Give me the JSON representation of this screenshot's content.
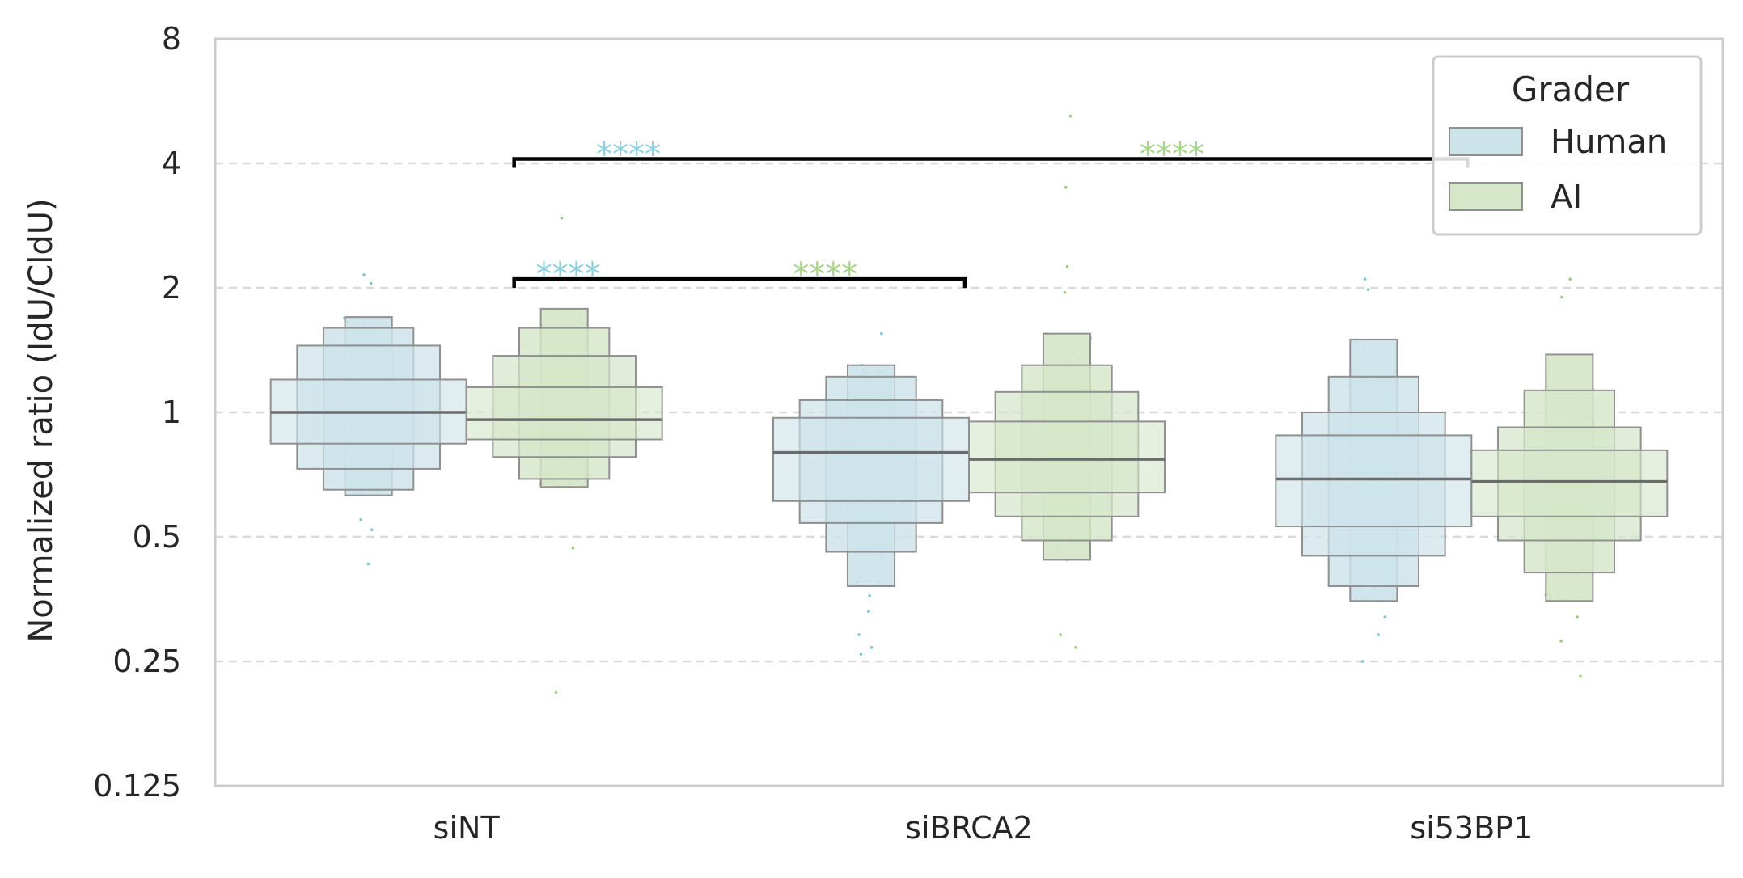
{
  "chart_data": {
    "type": "boxen",
    "ylabel": "Normalized ratio (IdU/CldU)",
    "xlabel": "",
    "yscale": "log2",
    "ylim": [
      0.125,
      8
    ],
    "yticks": [
      0.125,
      0.25,
      0.5,
      1,
      2,
      4,
      8
    ],
    "ytick_labels": [
      "0.125",
      "0.25",
      "0.5",
      "1",
      "2",
      "4",
      "8"
    ],
    "grid": "horizontal dashed",
    "categories": [
      "siNT",
      "siBRCA2",
      "si53BP1"
    ],
    "legend": {
      "title": "Grader",
      "placement": "top-right",
      "entries": [
        {
          "label": "Human",
          "color": "#cde3ea"
        },
        {
          "label": "AI",
          "color": "#d6e6c9"
        }
      ]
    },
    "colors": {
      "Human": {
        "fill": "#cde3ea",
        "point": "#7fc4d6",
        "star": "#8ecfdd"
      },
      "AI": {
        "fill": "#d6e6c9",
        "point": "#98cc78",
        "star": "#a6d48a"
      }
    },
    "series": [
      {
        "name": "Human",
        "groups": [
          {
            "category": "siNT",
            "median": 1.0,
            "boxes": [
              [
                0.84,
                1.2
              ],
              [
                0.73,
                1.45
              ],
              [
                0.65,
                1.6
              ],
              [
                0.63,
                1.7
              ]
            ],
            "outliers": [
              2.15,
              2.05,
              0.55,
              0.52,
              0.43
            ]
          },
          {
            "category": "siBRCA2",
            "median": 0.8,
            "boxes": [
              [
                0.61,
                0.97
              ],
              [
                0.54,
                1.07
              ],
              [
                0.46,
                1.22
              ],
              [
                0.38,
                1.3
              ]
            ],
            "outliers": [
              1.55,
              0.36,
              0.33,
              0.29,
              0.27,
              0.26
            ]
          },
          {
            "category": "si53BP1",
            "median": 0.69,
            "boxes": [
              [
                0.53,
                0.88
              ],
              [
                0.45,
                1.0
              ],
              [
                0.38,
                1.22
              ],
              [
                0.35,
                1.5
              ]
            ],
            "outliers": [
              2.1,
              1.98,
              0.32,
              0.29,
              0.25
            ]
          }
        ]
      },
      {
        "name": "AI",
        "groups": [
          {
            "category": "siNT",
            "median": 0.96,
            "boxes": [
              [
                0.86,
                1.15
              ],
              [
                0.78,
                1.37
              ],
              [
                0.69,
                1.6
              ],
              [
                0.66,
                1.78
              ]
            ],
            "outliers": [
              2.95,
              0.47,
              0.21
            ]
          },
          {
            "category": "siBRCA2",
            "median": 0.77,
            "boxes": [
              [
                0.64,
                0.95
              ],
              [
                0.56,
                1.12
              ],
              [
                0.49,
                1.3
              ],
              [
                0.44,
                1.55
              ]
            ],
            "outliers": [
              5.2,
              3.5,
              2.25,
              1.95,
              0.44,
              0.29,
              0.27
            ]
          },
          {
            "category": "si53BP1",
            "median": 0.68,
            "boxes": [
              [
                0.56,
                0.81
              ],
              [
                0.49,
                0.92
              ],
              [
                0.41,
                1.13
              ],
              [
                0.35,
                1.38
              ]
            ],
            "outliers": [
              2.1,
              1.9,
              0.32,
              0.28,
              0.23
            ]
          }
        ]
      }
    ],
    "annotations": [
      {
        "type": "bracket",
        "from": "siNT",
        "to": "siBRCA2",
        "y": 2.1,
        "labels": [
          {
            "text": "****",
            "series": "Human"
          },
          {
            "text": "****",
            "series": "AI"
          }
        ]
      },
      {
        "type": "bracket",
        "from": "siNT",
        "to": "si53BP1",
        "y": 4.1,
        "labels": [
          {
            "text": "****",
            "series": "Human"
          },
          {
            "text": "****",
            "series": "AI"
          }
        ]
      }
    ]
  }
}
